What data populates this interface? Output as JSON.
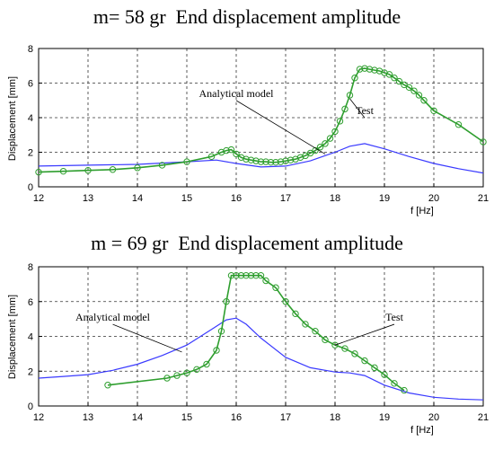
{
  "chart_data": [
    {
      "type": "line",
      "title": "m= 58 gr  End displacement amplitude",
      "xlabel": "f [Hz]",
      "ylabel": "Displacement [mm]",
      "xlim": [
        12,
        21
      ],
      "ylim": [
        0,
        8
      ],
      "xticks": [
        12,
        13,
        14,
        15,
        16,
        17,
        18,
        19,
        20,
        21
      ],
      "yticks": [
        0,
        2,
        4,
        6,
        8
      ],
      "grid": true,
      "series": [
        {
          "name": "Analytical model",
          "color": "#3a3aff",
          "marker": "none",
          "x": [
            12,
            13,
            14,
            15,
            15.6,
            16,
            16.5,
            17,
            17.5,
            18,
            18.3,
            18.6,
            19,
            19.5,
            20,
            20.5,
            21
          ],
          "y": [
            1.2,
            1.25,
            1.3,
            1.45,
            1.55,
            1.35,
            1.15,
            1.2,
            1.5,
            2.0,
            2.35,
            2.5,
            2.2,
            1.75,
            1.35,
            1.05,
            0.8
          ]
        },
        {
          "name": "Test",
          "color": "#2e9e2e",
          "marker": "circle",
          "x": [
            12,
            12.5,
            13,
            13.5,
            14,
            14.5,
            15,
            15.5,
            15.7,
            15.8,
            15.9,
            16.0,
            16.1,
            16.2,
            16.3,
            16.4,
            16.5,
            16.6,
            16.7,
            16.8,
            16.9,
            17.0,
            17.1,
            17.2,
            17.3,
            17.4,
            17.5,
            17.6,
            17.7,
            17.8,
            17.9,
            18.0,
            18.1,
            18.2,
            18.3,
            18.4,
            18.5,
            18.6,
            18.7,
            18.8,
            18.9,
            19.0,
            19.1,
            19.2,
            19.3,
            19.4,
            19.5,
            19.6,
            19.7,
            19.8,
            20.0,
            20.5,
            21.0
          ],
          "y": [
            0.85,
            0.9,
            0.95,
            1.0,
            1.1,
            1.25,
            1.45,
            1.75,
            2.0,
            2.1,
            2.15,
            1.9,
            1.7,
            1.6,
            1.55,
            1.5,
            1.45,
            1.45,
            1.42,
            1.42,
            1.45,
            1.5,
            1.55,
            1.6,
            1.7,
            1.8,
            1.95,
            2.1,
            2.3,
            2.5,
            2.8,
            3.2,
            3.8,
            4.5,
            5.3,
            6.3,
            6.8,
            6.85,
            6.8,
            6.75,
            6.7,
            6.6,
            6.5,
            6.3,
            6.1,
            5.9,
            5.75,
            5.55,
            5.3,
            5.0,
            4.4,
            3.6,
            2.6
          ]
        }
      ],
      "annotations": [
        {
          "text": "Analytical model",
          "x": 16.0,
          "y": 5.2,
          "arrow_to": [
            17.8,
            1.9
          ]
        },
        {
          "text": "Test",
          "x": 18.6,
          "y": 4.2,
          "arrow_to": [
            18.3,
            5.1
          ]
        }
      ]
    },
    {
      "type": "line",
      "title": "m = 69 gr  End displacement amplitude",
      "xlabel": "f [Hz]",
      "ylabel": "Displacement [mm]",
      "xlim": [
        12,
        21
      ],
      "ylim": [
        0,
        8
      ],
      "xticks": [
        12,
        13,
        14,
        15,
        16,
        17,
        18,
        19,
        20,
        21
      ],
      "yticks": [
        0,
        2,
        4,
        6,
        8
      ],
      "grid": true,
      "series": [
        {
          "name": "Analytical model",
          "color": "#3a3aff",
          "marker": "none",
          "x": [
            12,
            12.5,
            13,
            13.5,
            14,
            14.5,
            15,
            15.5,
            15.8,
            16.0,
            16.2,
            16.5,
            17,
            17.5,
            18,
            18.3,
            18.6,
            19,
            19.5,
            20,
            20.5,
            21
          ],
          "y": [
            1.6,
            1.7,
            1.8,
            2.05,
            2.4,
            2.9,
            3.5,
            4.4,
            4.95,
            5.05,
            4.7,
            3.9,
            2.8,
            2.2,
            1.95,
            1.9,
            1.75,
            1.2,
            0.75,
            0.5,
            0.4,
            0.35
          ]
        },
        {
          "name": "Test",
          "color": "#2e9e2e",
          "marker": "circle",
          "x": [
            13.4,
            14.6,
            14.8,
            15.0,
            15.2,
            15.4,
            15.6,
            15.7,
            15.8,
            15.9,
            16.0,
            16.1,
            16.2,
            16.3,
            16.4,
            16.5,
            16.6,
            16.8,
            17.0,
            17.2,
            17.4,
            17.6,
            17.8,
            18.0,
            18.2,
            18.4,
            18.6,
            18.8,
            19.0,
            19.2,
            19.4
          ],
          "y": [
            1.2,
            1.6,
            1.75,
            1.9,
            2.1,
            2.4,
            3.2,
            4.3,
            6.0,
            7.5,
            7.5,
            7.5,
            7.5,
            7.5,
            7.5,
            7.5,
            7.2,
            6.8,
            6.0,
            5.3,
            4.7,
            4.3,
            3.8,
            3.5,
            3.3,
            3.0,
            2.6,
            2.2,
            1.8,
            1.3,
            0.9
          ]
        }
      ],
      "annotations": [
        {
          "text": "Analytical model",
          "x": 13.5,
          "y": 4.9,
          "arrow_to": [
            14.9,
            3.1
          ]
        },
        {
          "text": "Test",
          "x": 19.2,
          "y": 4.9,
          "arrow_to": [
            18.0,
            3.5
          ]
        }
      ]
    }
  ]
}
